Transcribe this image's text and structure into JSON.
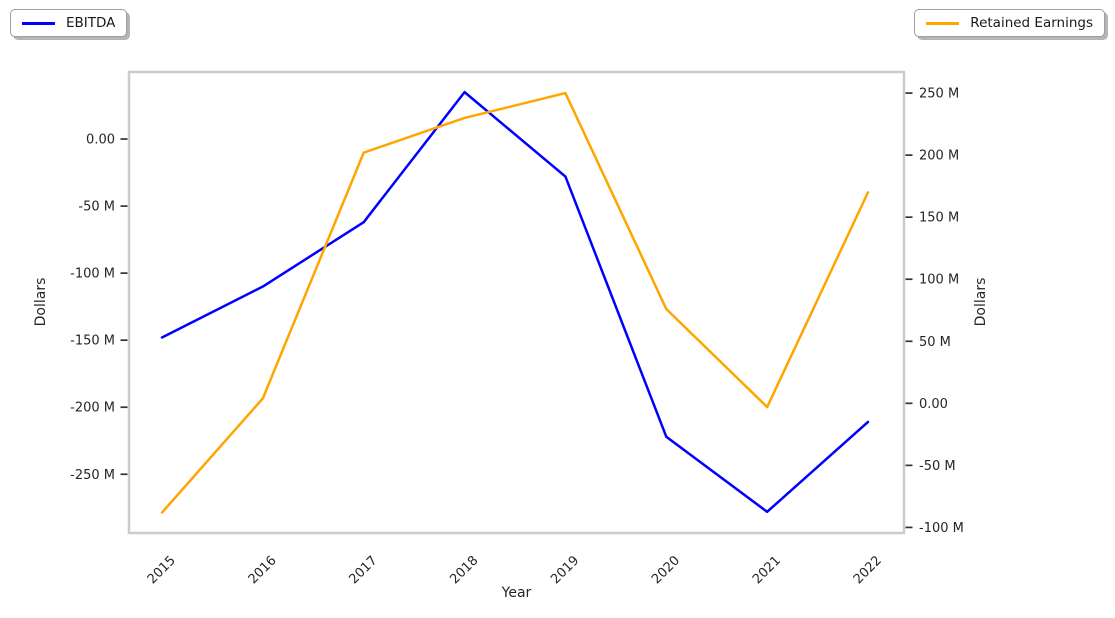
{
  "figure": {
    "background": "#ffffff",
    "plot_border_color": "#cccccc",
    "tick_color": "#333333",
    "text_color": "#262626"
  },
  "legends": [
    {
      "label": "EBITDA",
      "color": "#0000ff",
      "position": "top-left"
    },
    {
      "label": "Retained Earnings",
      "color": "#ffa500",
      "position": "top-right"
    }
  ],
  "chart_data": {
    "type": "line",
    "title": "",
    "xlabel": "Year",
    "x": [
      "2015",
      "2016",
      "2017",
      "2018",
      "2019",
      "2020",
      "2021",
      "2022"
    ],
    "series": [
      {
        "name": "EBITDA",
        "axis": "left",
        "color": "#0000ff",
        "values_millions": [
          -148,
          -110,
          -62,
          35,
          -28,
          -222,
          -278,
          -211
        ]
      },
      {
        "name": "Retained Earnings",
        "axis": "right",
        "color": "#ffa500",
        "values_millions": [
          -88,
          4,
          202,
          230,
          250,
          76,
          -3,
          170
        ]
      }
    ],
    "left_axis": {
      "label": "Dollars",
      "tick_labels": [
        "0.00",
        "-50 M",
        "-100 M",
        "-150 M",
        "-200 M",
        "-250 M"
      ],
      "tick_values_millions": [
        0,
        -50,
        -100,
        -150,
        -200,
        -250
      ],
      "range_millions": [
        -293.8,
        50
      ]
    },
    "right_axis": {
      "label": "Dollars",
      "tick_labels": [
        "250 M",
        "200 M",
        "150 M",
        "100 M",
        "50 M",
        "0.00",
        "-50 M",
        "-100 M"
      ],
      "tick_values_millions": [
        250,
        200,
        150,
        100,
        50,
        0,
        -50,
        -100
      ],
      "range_millions": [
        -104.5,
        267
      ]
    },
    "grid": false,
    "legend_position": "outside-top-corners"
  }
}
